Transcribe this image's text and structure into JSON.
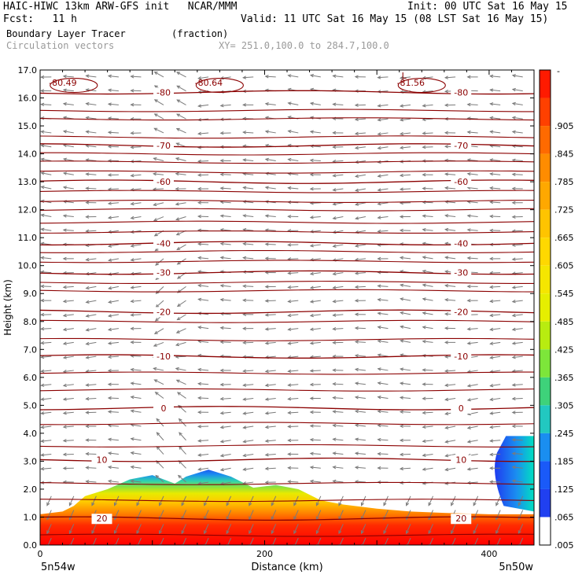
{
  "header": {
    "line1_left": "HAIC-HIWC 13km ARW-GFS init   NCAR/MMM",
    "line1_right": "Init: 00 UTC Sat 16 May 15",
    "line2_left": "Fcst:   11 h",
    "line2_right": "Valid: 11 UTC Sat 16 May 15 (08 LST Sat 16 May 15)",
    "line3_left": "Boundary Layer Tracer",
    "line3_units": "(fraction)",
    "line4_left": "Circulation vectors",
    "line4_xy": "XY= 251.0,100.0 to 284.7,100.0"
  },
  "chart_data": {
    "type": "cross-section",
    "xlabel": "Distance (km)",
    "ylabel": "Height (km)",
    "xlim": [
      0,
      440
    ],
    "ylim": [
      0,
      17
    ],
    "x_ticks": [
      0,
      200,
      400
    ],
    "x_tick_labels": [
      "0",
      "200",
      "400"
    ],
    "y_ticks": [
      0,
      1,
      2,
      3,
      4,
      5,
      6,
      7,
      8,
      9,
      10,
      11,
      12,
      13,
      14,
      15,
      16,
      17
    ],
    "y_tick_labels": [
      "0.0",
      "1.0",
      "2.0",
      "3.0",
      "4.0",
      "5.0",
      "6.0",
      "7.0",
      "8.0",
      "9.0",
      "10.0",
      "11.0",
      "12.0",
      "13.0",
      "14.0",
      "15.0",
      "16.0",
      "17.0"
    ],
    "corner_left": "5n54w",
    "corner_right": "5n50w",
    "colorbar": {
      "top_label": "-",
      "labels": [
        ".905",
        ".845",
        ".785",
        ".725",
        ".665",
        ".605",
        ".545",
        ".485",
        ".425",
        ".365",
        ".305",
        ".245",
        ".185",
        ".125",
        ".065",
        ".005"
      ],
      "colors": [
        "#ff1a00",
        "#ff4000",
        "#ff6a00",
        "#ff8c00",
        "#ffa800",
        "#ffc400",
        "#ffd800",
        "#f5e600",
        "#e6ee00",
        "#b8ec10",
        "#7de63a",
        "#3ed27a",
        "#22c8c0",
        "#1a8ef0",
        "#1a5af8",
        "#2040f0"
      ],
      "lowest_color": "#ffffff"
    },
    "contour_levels": [
      {
        "value": -80,
        "label": "-80",
        "y": 16.2
      },
      {
        "value": -70,
        "label": "-70",
        "y": 14.3
      },
      {
        "value": -60,
        "label": "-60",
        "y": 13.0
      },
      {
        "value": -40,
        "label": "-40",
        "y": 10.8
      },
      {
        "value": -30,
        "label": "-30",
        "y": 9.75
      },
      {
        "value": -20,
        "label": "-20",
        "y": 8.35
      },
      {
        "value": -10,
        "label": "-10",
        "y": 6.75
      },
      {
        "value": 0,
        "label": "0",
        "y": 4.9
      },
      {
        "value": 10,
        "label": "10",
        "y": 3.05
      },
      {
        "value": 20,
        "label": "20",
        "y": 0.95
      }
    ],
    "extra_isotherm_heights": [
      0.35,
      1.6,
      2.2,
      3.55,
      4.35,
      5.55,
      6.15,
      7.35,
      8.0,
      9.1,
      9.4,
      10.15,
      10.5,
      11.2,
      11.55,
      12.0,
      12.3,
      12.65,
      13.35,
      13.7,
      14.0,
      14.6,
      15.25,
      15.55
    ],
    "minima": [
      {
        "label": "-80.49",
        "x": 5,
        "y": 16.55
      },
      {
        "label": "-80.64",
        "x": 135,
        "y": 16.55
      },
      {
        "label": "-81.56",
        "x": 315,
        "y": 16.55
      }
    ],
    "low_markers": [
      {
        "label": "L",
        "x": 322,
        "y": 16.8
      }
    ],
    "tracer_profile": [
      {
        "x": 0,
        "top": 1.1
      },
      {
        "x": 20,
        "top": 1.2
      },
      {
        "x": 30,
        "top": 1.4
      },
      {
        "x": 40,
        "top": 1.75
      },
      {
        "x": 60,
        "top": 2.0
      },
      {
        "x": 80,
        "top": 2.35
      },
      {
        "x": 100,
        "top": 2.5
      },
      {
        "x": 120,
        "top": 2.2
      },
      {
        "x": 130,
        "top": 2.45
      },
      {
        "x": 150,
        "top": 2.7
      },
      {
        "x": 170,
        "top": 2.45
      },
      {
        "x": 190,
        "top": 2.05
      },
      {
        "x": 210,
        "top": 2.15
      },
      {
        "x": 230,
        "top": 2.0
      },
      {
        "x": 250,
        "top": 1.6
      },
      {
        "x": 270,
        "top": 1.45
      },
      {
        "x": 300,
        "top": 1.3
      },
      {
        "x": 330,
        "top": 1.2
      },
      {
        "x": 360,
        "top": 1.15
      },
      {
        "x": 400,
        "top": 1.1
      },
      {
        "x": 440,
        "top": 1.1
      }
    ],
    "tracer_right_plume": {
      "x_start": 405,
      "x_end": 440,
      "bottom": 1.2,
      "top": 3.9
    }
  }
}
